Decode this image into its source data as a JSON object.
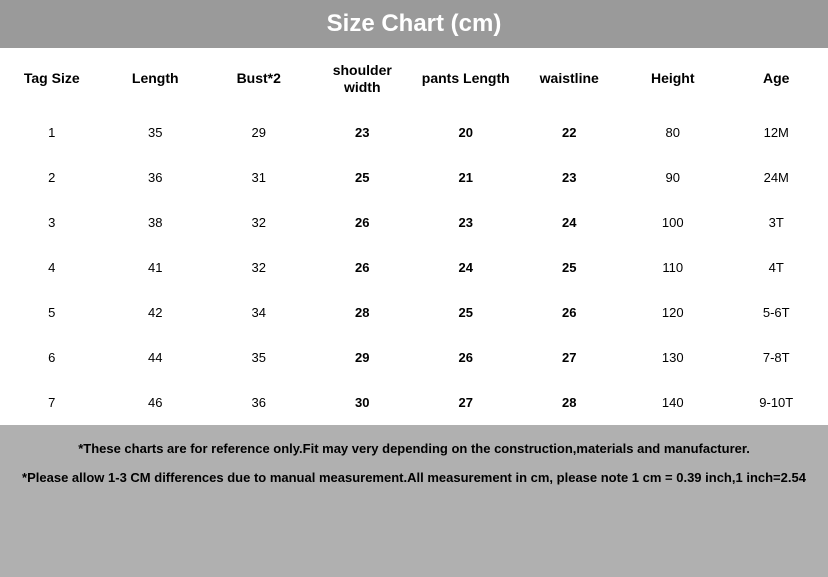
{
  "title": "Size Chart (cm)",
  "columns": [
    {
      "label": "Tag Size",
      "bold_cells": false
    },
    {
      "label": "Length",
      "bold_cells": false
    },
    {
      "label": "Bust*2",
      "bold_cells": false
    },
    {
      "label": "shoulder width",
      "bold_cells": true
    },
    {
      "label": "pants Length",
      "bold_cells": true
    },
    {
      "label": "waistline",
      "bold_cells": true
    },
    {
      "label": "Height",
      "bold_cells": false
    },
    {
      "label": "Age",
      "bold_cells": false
    }
  ],
  "rows": [
    [
      "1",
      "35",
      "29",
      "23",
      "20",
      "22",
      "80",
      "12M"
    ],
    [
      "2",
      "36",
      "31",
      "25",
      "21",
      "23",
      "90",
      "24M"
    ],
    [
      "3",
      "38",
      "32",
      "26",
      "23",
      "24",
      "100",
      "3T"
    ],
    [
      "4",
      "41",
      "32",
      "26",
      "24",
      "25",
      "110",
      "4T"
    ],
    [
      "5",
      "42",
      "34",
      "28",
      "25",
      "26",
      "120",
      "5-6T"
    ],
    [
      "6",
      "44",
      "35",
      "29",
      "26",
      "27",
      "130",
      "7-8T"
    ],
    [
      "7",
      "46",
      "36",
      "30",
      "27",
      "28",
      "140",
      "9-10T"
    ]
  ],
  "disclaimer": {
    "line1": "*These charts are for reference only.Fit may very depending on the construction,materials and manufacturer.",
    "line2": "*Please allow 1-3 CM differences due to manual measurement.All measurement in cm, please note 1 cm = 0.39 inch,1 inch=2.54"
  },
  "styling": {
    "title_bg": "#9a9a9a",
    "title_color": "#ffffff",
    "title_fontsize": 24,
    "table_bg": "#ffffff",
    "disclaimer_bg": "#b0b0b0",
    "header_fontsize": 14,
    "cell_fontsize": 13,
    "disclaimer_fontsize": 13,
    "text_color": "#000000"
  }
}
